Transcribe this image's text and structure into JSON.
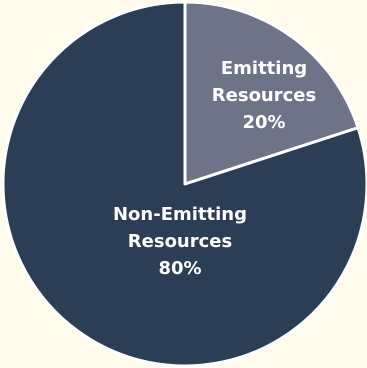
{
  "chart_data": {
    "type": "pie",
    "title": "",
    "background": "#FFFCEE",
    "slice_border_color": "#FFFFFF",
    "slices": [
      {
        "label_lines": [
          "Emitting",
          "Resources"
        ],
        "percent_label": "20%",
        "value": 20,
        "color": "#6E7488"
      },
      {
        "label_lines": [
          "Non-Emitting",
          "Resources"
        ],
        "percent_label": "80%",
        "value": 80,
        "color": "#2C3E56"
      }
    ]
  }
}
